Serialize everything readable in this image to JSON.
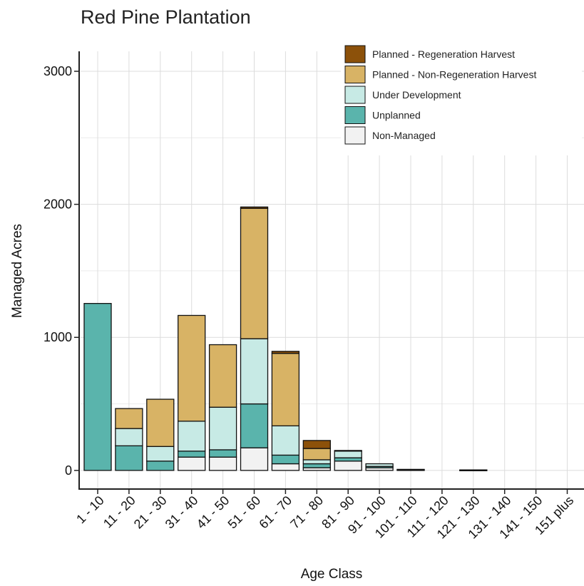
{
  "chart_data": {
    "type": "bar",
    "stacked": true,
    "title": "Red Pine Plantation",
    "xlabel": "Age Class",
    "ylabel": "Managed Acres",
    "ylim": [
      -140,
      3150
    ],
    "yticks": [
      0,
      1000,
      2000,
      3000
    ],
    "yticklabels": [
      "0",
      "1000",
      "2000",
      "3000"
    ],
    "grid": true,
    "legend_position": "top-right",
    "categories": [
      "1 - 10",
      "11 - 20",
      "21 - 30",
      "31 - 40",
      "41 - 50",
      "51 - 60",
      "61 - 70",
      "71 - 80",
      "81 - 90",
      "91 - 100",
      "101 - 110",
      "111 - 120",
      "121 - 130",
      "131 - 140",
      "141 - 150",
      "151 plus"
    ],
    "series": [
      {
        "name": "Non-Managed",
        "color": "#f2f2f2",
        "values": [
          0,
          0,
          0,
          100,
          100,
          170,
          50,
          20,
          70,
          20,
          0,
          0,
          0,
          0,
          0,
          0
        ]
      },
      {
        "name": "Unplanned",
        "color": "#5ab4ac",
        "values": [
          1255,
          185,
          70,
          45,
          55,
          330,
          65,
          30,
          25,
          10,
          5,
          0,
          3,
          0,
          0,
          0
        ]
      },
      {
        "name": "Under Development",
        "color": "#c7eae5",
        "values": [
          0,
          130,
          110,
          225,
          320,
          490,
          220,
          30,
          50,
          20,
          3,
          0,
          1,
          0,
          0,
          0
        ]
      },
      {
        "name": "Planned - Non-Regeneration Harvest",
        "color": "#d8b365",
        "values": [
          0,
          150,
          355,
          795,
          470,
          980,
          545,
          85,
          5,
          0,
          0,
          0,
          0,
          0,
          0,
          0
        ]
      },
      {
        "name": "Planned - Regeneration Harvest",
        "color": "#8c510a",
        "values": [
          0,
          0,
          0,
          0,
          0,
          10,
          15,
          60,
          0,
          0,
          0,
          0,
          0,
          0,
          0,
          0
        ]
      }
    ]
  }
}
